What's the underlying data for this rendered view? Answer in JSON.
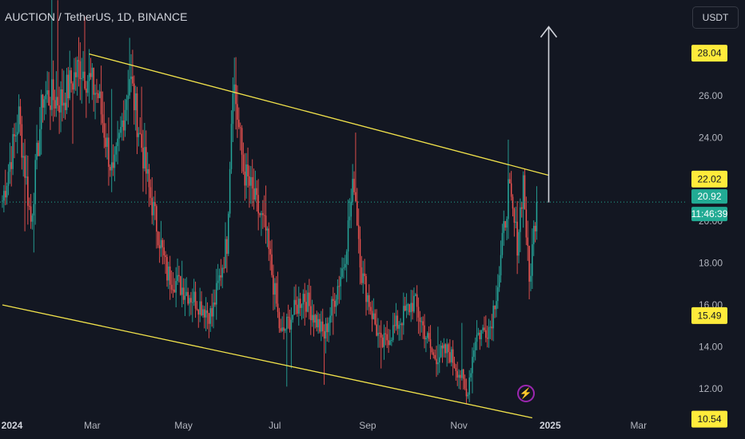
{
  "header": {
    "symbol_title": "AUCTION / TetherUS, 1D, BINANCE"
  },
  "currency_button": {
    "label": "USDT"
  },
  "icons": {
    "alert": "lightning-icon",
    "target_arrow": "arrow-up-icon"
  },
  "colors": {
    "background": "#131722",
    "up": "#26a69a",
    "down": "#ef5350",
    "trendline": "#f2e34b",
    "badge_yellow": "#ffeb3b",
    "badge_price": "#22ab94",
    "grid_text": "#b2b5be",
    "arrow": "#d1d4dc"
  },
  "chart_data": {
    "type": "candlestick",
    "title": "AUCTION / TetherUS, 1D, BINANCE",
    "xlabel": "",
    "ylabel": "",
    "x_ticks": [
      "2024",
      "Mar",
      "May",
      "Jul",
      "Sep",
      "Nov",
      "2025",
      "Mar"
    ],
    "y_ticks": [
      "12.00",
      "14.00",
      "16.00",
      "18.00",
      "20.00",
      "24.00",
      "26.00"
    ],
    "x_range": [
      "2024-01-01",
      "2025-03-15"
    ],
    "ylim": [
      10.2,
      30.2
    ],
    "price_labels": [
      {
        "text": "28.04",
        "value": 28.04,
        "style": "yellow"
      },
      {
        "text": "22.02",
        "value": 22.02,
        "style": "yellow"
      },
      {
        "text": "20.92",
        "value": 20.92,
        "style": "current"
      },
      {
        "text": "11:46:39",
        "value": null,
        "style": "timer"
      },
      {
        "text": "15.49",
        "value": 15.49,
        "style": "yellow"
      },
      {
        "text": "10.54",
        "value": 10.54,
        "style": "yellow"
      }
    ],
    "current_price": 20.92,
    "countdown": "11:46:39",
    "trendlines": [
      {
        "name": "upper",
        "from": {
          "date": "2024-02-28",
          "value": 28.0
        },
        "to": {
          "date": "2024-12-31",
          "value": 22.2
        }
      },
      {
        "name": "lower",
        "from": {
          "date": "2024-01-01",
          "value": 16.0
        },
        "to": {
          "date": "2024-12-20",
          "value": 10.6
        }
      }
    ],
    "target_arrow": {
      "date": "2024-12-31",
      "from": 20.9,
      "to": 29.3
    },
    "anchor_prices": [
      {
        "date": "2024-01-01",
        "value": 21.0
      },
      {
        "date": "2024-01-12",
        "value": 25.0
      },
      {
        "date": "2024-01-20",
        "value": 20.0
      },
      {
        "date": "2024-01-28",
        "value": 26.0
      },
      {
        "date": "2024-02-10",
        "value": 25.8
      },
      {
        "date": "2024-02-22",
        "value": 27.5
      },
      {
        "date": "2024-03-05",
        "value": 26.0
      },
      {
        "date": "2024-03-15",
        "value": 22.0
      },
      {
        "date": "2024-03-26",
        "value": 27.0
      },
      {
        "date": "2024-04-08",
        "value": 21.5
      },
      {
        "date": "2024-04-20",
        "value": 17.5
      },
      {
        "date": "2024-05-05",
        "value": 16.5
      },
      {
        "date": "2024-05-20",
        "value": 15.5
      },
      {
        "date": "2024-05-30",
        "value": 19.0
      },
      {
        "date": "2024-06-03",
        "value": 27.0
      },
      {
        "date": "2024-06-10",
        "value": 22.5
      },
      {
        "date": "2024-06-25",
        "value": 19.5
      },
      {
        "date": "2024-07-05",
        "value": 14.5
      },
      {
        "date": "2024-07-20",
        "value": 16.5
      },
      {
        "date": "2024-08-03",
        "value": 14.5
      },
      {
        "date": "2024-08-16",
        "value": 18.0
      },
      {
        "date": "2024-08-23",
        "value": 22.0
      },
      {
        "date": "2024-08-28",
        "value": 17.5
      },
      {
        "date": "2024-09-10",
        "value": 14.0
      },
      {
        "date": "2024-09-25",
        "value": 15.5
      },
      {
        "date": "2024-10-02",
        "value": 16.2
      },
      {
        "date": "2024-10-15",
        "value": 13.5
      },
      {
        "date": "2024-10-25",
        "value": 13.8
      },
      {
        "date": "2024-11-03",
        "value": 12.5
      },
      {
        "date": "2024-11-06",
        "value": 11.6
      },
      {
        "date": "2024-11-12",
        "value": 14.5
      },
      {
        "date": "2024-11-22",
        "value": 15.0
      },
      {
        "date": "2024-11-28",
        "value": 17.5
      },
      {
        "date": "2024-12-04",
        "value": 21.5
      },
      {
        "date": "2024-12-10",
        "value": 19.0
      },
      {
        "date": "2024-12-14",
        "value": 22.0
      },
      {
        "date": "2024-12-18",
        "value": 17.0
      },
      {
        "date": "2024-12-21",
        "value": 19.5
      },
      {
        "date": "2024-12-23",
        "value": 20.92
      }
    ]
  }
}
